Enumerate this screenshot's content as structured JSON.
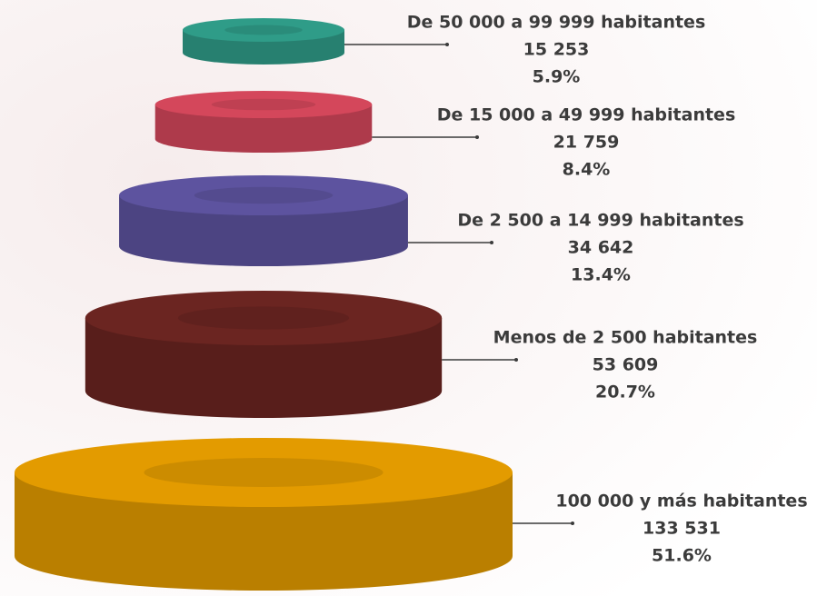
{
  "chart_data": {
    "type": "pyramid",
    "categories": [
      "De 50 000 a 99 999 habitantes",
      "De 15 000 a 49 999 habitantes",
      "De 2 500 a 14 999 habitantes",
      "Menos de 2 500 habitantes",
      "100 000 y más habitantes"
    ],
    "values": [
      15253,
      21759,
      34642,
      53609,
      133531
    ],
    "value_labels": [
      "15 253",
      "21 759",
      "34 642",
      "53 609",
      "133 531"
    ],
    "percentages": [
      5.9,
      8.4,
      13.4,
      20.7,
      51.6
    ],
    "percentage_labels": [
      "5.9%",
      "8.4%",
      "13.4%",
      "20.7%",
      "51.6%"
    ],
    "colors": [
      "#2f9c88",
      "#d4475b",
      "#5d539f",
      "#6b2521",
      "#e39b00"
    ]
  }
}
